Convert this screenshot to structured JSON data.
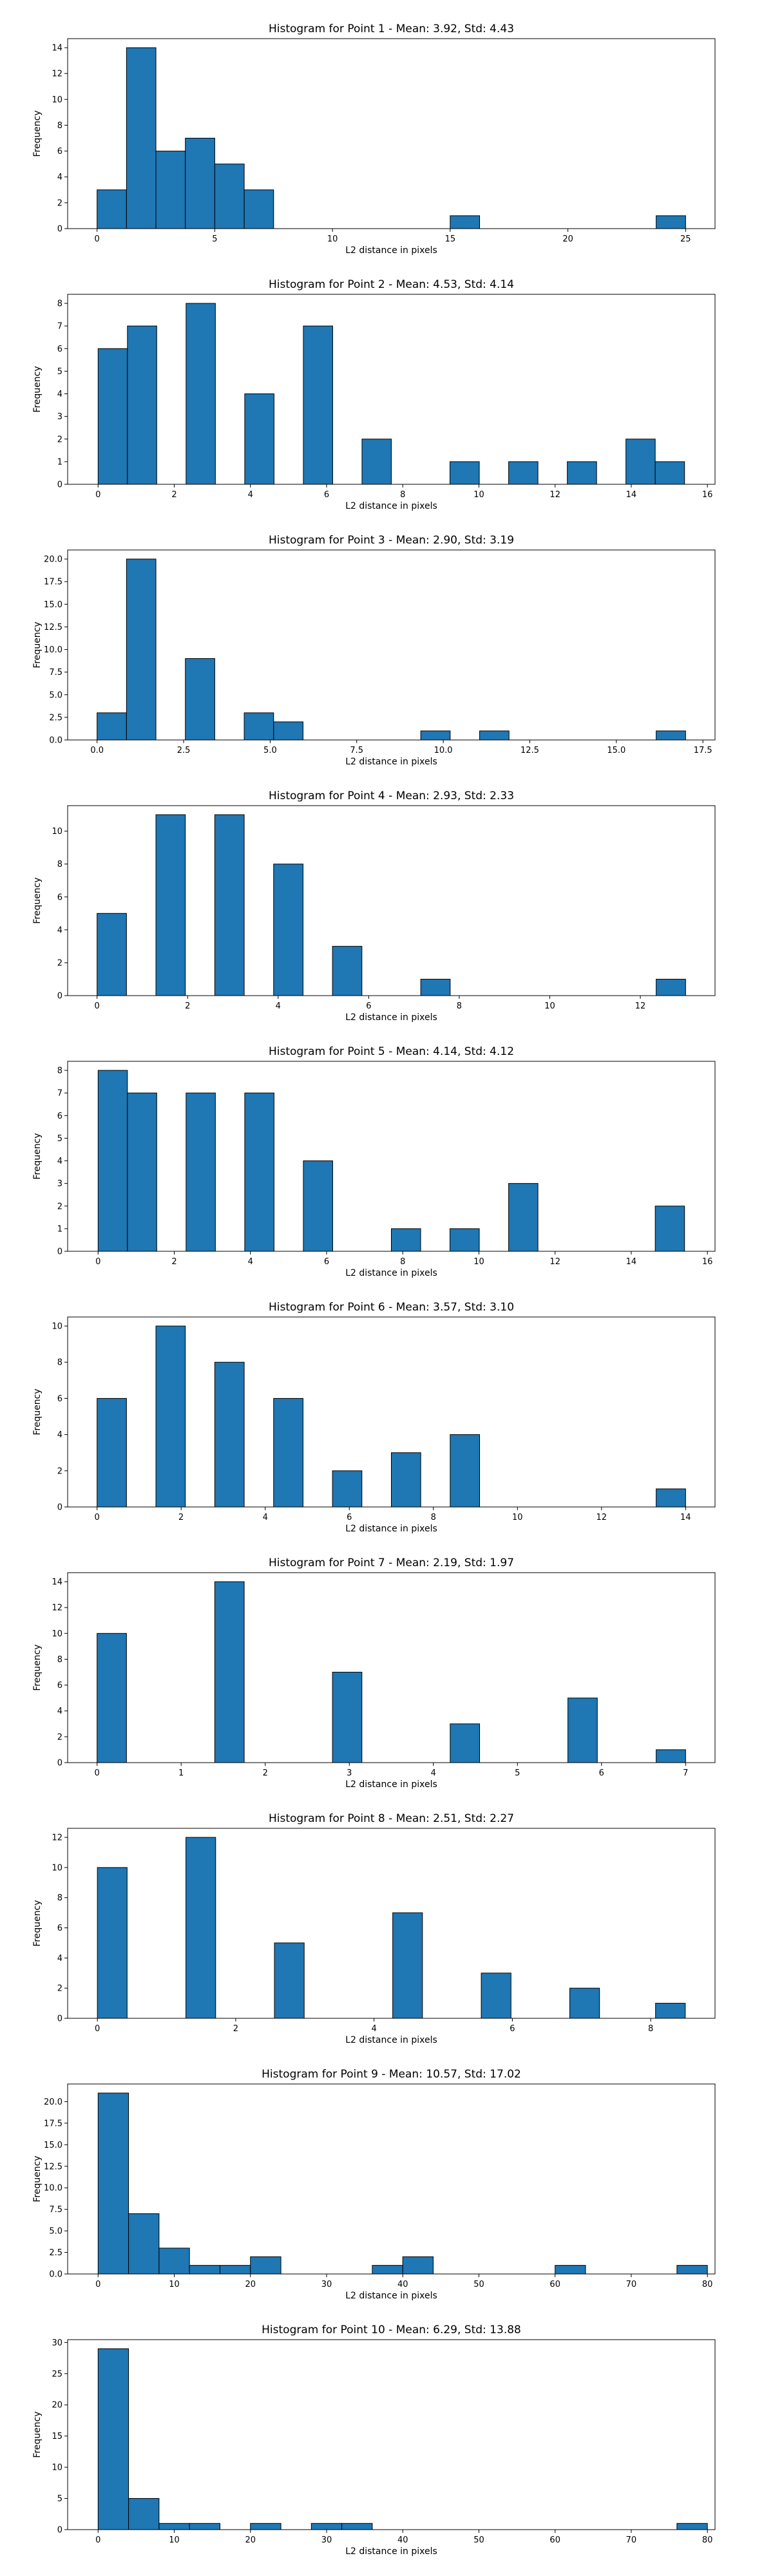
{
  "chart_data": [
    {
      "type": "bar",
      "title": "Histogram for Point 1 - Mean: 3.92, Std: 4.43",
      "xlabel": "L2 distance in pixels",
      "ylabel": "Frequency",
      "xlim": [
        -1.25,
        26.25
      ],
      "ylim": [
        0,
        14.7
      ],
      "xticks": [
        0,
        5,
        10,
        15,
        20,
        25
      ],
      "xtick_labels": [
        "0",
        "5",
        "10",
        "15",
        "20",
        "25"
      ],
      "yticks": [
        0,
        2,
        4,
        6,
        8,
        10,
        12,
        14
      ],
      "ytick_labels": [
        "0",
        "2",
        "4",
        "6",
        "8",
        "10",
        "12",
        "14"
      ],
      "bin_width": 1.25,
      "bins": [
        {
          "x0": 0.0,
          "x1": 1.25,
          "count": 3
        },
        {
          "x0": 1.25,
          "x1": 2.5,
          "count": 14
        },
        {
          "x0": 2.5,
          "x1": 3.75,
          "count": 6
        },
        {
          "x0": 3.75,
          "x1": 5.0,
          "count": 7
        },
        {
          "x0": 5.0,
          "x1": 6.25,
          "count": 5
        },
        {
          "x0": 6.25,
          "x1": 7.5,
          "count": 3
        },
        {
          "x0": 15.0,
          "x1": 16.25,
          "count": 1
        },
        {
          "x0": 23.75,
          "x1": 25.0,
          "count": 1
        }
      ],
      "grid": false
    },
    {
      "type": "bar",
      "title": "Histogram for Point 2 - Mean: 4.53, Std: 4.14",
      "xlabel": "L2 distance in pixels",
      "ylabel": "Frequency",
      "xlim": [
        -0.8,
        16.2
      ],
      "ylim": [
        0,
        8.4
      ],
      "xticks": [
        0,
        2,
        4,
        6,
        8,
        10,
        12,
        14,
        16
      ],
      "xtick_labels": [
        "0",
        "2",
        "4",
        "6",
        "8",
        "10",
        "12",
        "14",
        "16"
      ],
      "yticks": [
        0,
        1,
        2,
        3,
        4,
        5,
        6,
        7,
        8
      ],
      "ytick_labels": [
        "0",
        "1",
        "2",
        "3",
        "4",
        "5",
        "6",
        "7",
        "8"
      ],
      "bin_width": 0.77,
      "bins": [
        {
          "x0": 0.0,
          "x1": 0.77,
          "count": 6
        },
        {
          "x0": 0.77,
          "x1": 1.54,
          "count": 7
        },
        {
          "x0": 2.31,
          "x1": 3.08,
          "count": 8
        },
        {
          "x0": 3.85,
          "x1": 4.62,
          "count": 4
        },
        {
          "x0": 5.39,
          "x1": 6.16,
          "count": 7
        },
        {
          "x0": 6.93,
          "x1": 7.7,
          "count": 2
        },
        {
          "x0": 9.24,
          "x1": 10.01,
          "count": 1
        },
        {
          "x0": 10.78,
          "x1": 11.55,
          "count": 1
        },
        {
          "x0": 12.32,
          "x1": 13.09,
          "count": 1
        },
        {
          "x0": 13.86,
          "x1": 14.63,
          "count": 2
        },
        {
          "x0": 14.63,
          "x1": 15.4,
          "count": 1
        }
      ],
      "grid": false
    },
    {
      "type": "bar",
      "title": "Histogram for Point 3 - Mean: 2.90, Std: 3.19",
      "xlabel": "L2 distance in pixels",
      "ylabel": "Frequency",
      "xlim": [
        -0.85,
        17.85
      ],
      "ylim": [
        0,
        21
      ],
      "xticks": [
        0,
        2.5,
        5,
        7.5,
        10,
        12.5,
        15,
        17.5
      ],
      "xtick_labels": [
        "0.0",
        "2.5",
        "5.0",
        "7.5",
        "10.0",
        "12.5",
        "15.0",
        "17.5"
      ],
      "yticks": [
        0,
        2.5,
        5,
        7.5,
        10,
        12.5,
        15,
        17.5,
        20
      ],
      "ytick_labels": [
        "0.0",
        "2.5",
        "5.0",
        "7.5",
        "10.0",
        "12.5",
        "15.0",
        "17.5",
        "20.0"
      ],
      "bin_width": 0.85,
      "bins": [
        {
          "x0": 0.0,
          "x1": 0.85,
          "count": 3
        },
        {
          "x0": 0.85,
          "x1": 1.7,
          "count": 20
        },
        {
          "x0": 2.55,
          "x1": 3.4,
          "count": 9
        },
        {
          "x0": 4.25,
          "x1": 5.1,
          "count": 3
        },
        {
          "x0": 5.1,
          "x1": 5.95,
          "count": 2
        },
        {
          "x0": 9.35,
          "x1": 10.2,
          "count": 1
        },
        {
          "x0": 11.05,
          "x1": 11.9,
          "count": 1
        },
        {
          "x0": 16.15,
          "x1": 17.0,
          "count": 1
        }
      ],
      "grid": false
    },
    {
      "type": "bar",
      "title": "Histogram for Point 4 - Mean: 2.93, Std: 2.33",
      "xlabel": "L2 distance in pixels",
      "ylabel": "Frequency",
      "xlim": [
        -0.65,
        13.65
      ],
      "ylim": [
        0,
        11.55
      ],
      "xticks": [
        0,
        2,
        4,
        6,
        8,
        10,
        12
      ],
      "xtick_labels": [
        "0",
        "2",
        "4",
        "6",
        "8",
        "10",
        "12"
      ],
      "yticks": [
        0,
        2,
        4,
        6,
        8,
        10
      ],
      "ytick_labels": [
        "0",
        "2",
        "4",
        "6",
        "8",
        "10"
      ],
      "bin_width": 0.65,
      "bins": [
        {
          "x0": 0.0,
          "x1": 0.65,
          "count": 5
        },
        {
          "x0": 1.3,
          "x1": 1.95,
          "count": 11
        },
        {
          "x0": 2.6,
          "x1": 3.25,
          "count": 11
        },
        {
          "x0": 3.9,
          "x1": 4.55,
          "count": 8
        },
        {
          "x0": 5.2,
          "x1": 5.85,
          "count": 3
        },
        {
          "x0": 7.15,
          "x1": 7.8,
          "count": 1
        },
        {
          "x0": 12.35,
          "x1": 13.0,
          "count": 1
        }
      ],
      "grid": false
    },
    {
      "type": "bar",
      "title": "Histogram for Point 5 - Mean: 4.14, Std: 4.12",
      "xlabel": "L2 distance in pixels",
      "ylabel": "Frequency",
      "xlim": [
        -0.8,
        16.2
      ],
      "ylim": [
        0,
        8.4
      ],
      "xticks": [
        0,
        2,
        4,
        6,
        8,
        10,
        12,
        14,
        16
      ],
      "xtick_labels": [
        "0",
        "2",
        "4",
        "6",
        "8",
        "10",
        "12",
        "14",
        "16"
      ],
      "yticks": [
        0,
        1,
        2,
        3,
        4,
        5,
        6,
        7,
        8
      ],
      "ytick_labels": [
        "0",
        "1",
        "2",
        "3",
        "4",
        "5",
        "6",
        "7",
        "8"
      ],
      "bin_width": 0.77,
      "bins": [
        {
          "x0": 0.0,
          "x1": 0.77,
          "count": 8
        },
        {
          "x0": 0.77,
          "x1": 1.54,
          "count": 7
        },
        {
          "x0": 2.31,
          "x1": 3.08,
          "count": 7
        },
        {
          "x0": 3.85,
          "x1": 4.62,
          "count": 7
        },
        {
          "x0": 5.39,
          "x1": 6.16,
          "count": 4
        },
        {
          "x0": 7.7,
          "x1": 8.47,
          "count": 1
        },
        {
          "x0": 9.24,
          "x1": 10.01,
          "count": 1
        },
        {
          "x0": 10.78,
          "x1": 11.55,
          "count": 3
        },
        {
          "x0": 14.63,
          "x1": 15.4,
          "count": 2
        }
      ],
      "grid": false
    },
    {
      "type": "bar",
      "title": "Histogram for Point 6 - Mean: 3.57, Std: 3.10",
      "xlabel": "L2 distance in pixels",
      "ylabel": "Frequency",
      "xlim": [
        -0.7,
        14.7
      ],
      "ylim": [
        0,
        10.5
      ],
      "xticks": [
        0,
        2,
        4,
        6,
        8,
        10,
        12,
        14
      ],
      "xtick_labels": [
        "0",
        "2",
        "4",
        "6",
        "8",
        "10",
        "12",
        "14"
      ],
      "yticks": [
        0,
        2,
        4,
        6,
        8,
        10
      ],
      "ytick_labels": [
        "0",
        "2",
        "4",
        "6",
        "8",
        "10"
      ],
      "bin_width": 0.7,
      "bins": [
        {
          "x0": 0.0,
          "x1": 0.7,
          "count": 6
        },
        {
          "x0": 1.4,
          "x1": 2.1,
          "count": 10
        },
        {
          "x0": 2.8,
          "x1": 3.5,
          "count": 8
        },
        {
          "x0": 4.2,
          "x1": 4.9,
          "count": 6
        },
        {
          "x0": 5.6,
          "x1": 6.3,
          "count": 2
        },
        {
          "x0": 7.0,
          "x1": 7.7,
          "count": 3
        },
        {
          "x0": 8.4,
          "x1": 9.1,
          "count": 4
        },
        {
          "x0": 13.3,
          "x1": 14.0,
          "count": 1
        }
      ],
      "grid": false
    },
    {
      "type": "bar",
      "title": "Histogram for Point 7 - Mean: 2.19, Std: 1.97",
      "xlabel": "L2 distance in pixels",
      "ylabel": "Frequency",
      "xlim": [
        -0.35,
        7.35
      ],
      "ylim": [
        0,
        14.7
      ],
      "xticks": [
        0,
        1,
        2,
        3,
        4,
        5,
        6,
        7
      ],
      "xtick_labels": [
        "0",
        "1",
        "2",
        "3",
        "4",
        "5",
        "6",
        "7"
      ],
      "yticks": [
        0,
        2,
        4,
        6,
        8,
        10,
        12,
        14
      ],
      "ytick_labels": [
        "0",
        "2",
        "4",
        "6",
        "8",
        "10",
        "12",
        "14"
      ],
      "bin_width": 0.35,
      "bins": [
        {
          "x0": 0.0,
          "x1": 0.35,
          "count": 10
        },
        {
          "x0": 1.4,
          "x1": 1.75,
          "count": 14
        },
        {
          "x0": 2.8,
          "x1": 3.15,
          "count": 7
        },
        {
          "x0": 4.2,
          "x1": 4.55,
          "count": 3
        },
        {
          "x0": 5.6,
          "x1": 5.95,
          "count": 5
        },
        {
          "x0": 6.65,
          "x1": 7.0,
          "count": 1
        }
      ],
      "grid": false
    },
    {
      "type": "bar",
      "title": "Histogram for Point 8 - Mean: 2.51, Std: 2.27",
      "xlabel": "L2 distance in pixels",
      "ylabel": "Frequency",
      "xlim": [
        -0.43,
        8.93
      ],
      "ylim": [
        0,
        12.6
      ],
      "xticks": [
        0,
        2,
        4,
        6,
        8
      ],
      "xtick_labels": [
        "0",
        "2",
        "4",
        "6",
        "8"
      ],
      "yticks": [
        0,
        2,
        4,
        6,
        8,
        10,
        12
      ],
      "ytick_labels": [
        "0",
        "2",
        "4",
        "6",
        "8",
        "10",
        "12"
      ],
      "bin_width": 0.43,
      "bins": [
        {
          "x0": 0.0,
          "x1": 0.43,
          "count": 10
        },
        {
          "x0": 1.28,
          "x1": 1.71,
          "count": 12
        },
        {
          "x0": 2.56,
          "x1": 2.99,
          "count": 5
        },
        {
          "x0": 4.27,
          "x1": 4.7,
          "count": 7
        },
        {
          "x0": 5.55,
          "x1": 5.98,
          "count": 3
        },
        {
          "x0": 6.83,
          "x1": 7.26,
          "count": 2
        },
        {
          "x0": 8.07,
          "x1": 8.5,
          "count": 1
        }
      ],
      "grid": false
    },
    {
      "type": "bar",
      "title": "Histogram for Point 9 - Mean: 10.57, Std: 17.02",
      "xlabel": "L2 distance in pixels",
      "ylabel": "Frequency",
      "xlim": [
        -4.0,
        81.0
      ],
      "ylim": [
        0,
        22.05
      ],
      "xticks": [
        0,
        10,
        20,
        30,
        40,
        50,
        60,
        70,
        80
      ],
      "xtick_labels": [
        "0",
        "10",
        "20",
        "30",
        "40",
        "50",
        "60",
        "70",
        "80"
      ],
      "yticks": [
        0,
        2.5,
        5,
        7.5,
        10,
        12.5,
        15,
        17.5,
        20
      ],
      "ytick_labels": [
        "0.0",
        "2.5",
        "5.0",
        "7.5",
        "10.0",
        "12.5",
        "15.0",
        "17.5",
        "20.0"
      ],
      "bin_width": 4.0,
      "bins": [
        {
          "x0": 0.0,
          "x1": 4.0,
          "count": 21
        },
        {
          "x0": 4.0,
          "x1": 8.0,
          "count": 7
        },
        {
          "x0": 8.0,
          "x1": 12.0,
          "count": 3
        },
        {
          "x0": 12.0,
          "x1": 16.0,
          "count": 1
        },
        {
          "x0": 16.0,
          "x1": 20.0,
          "count": 1
        },
        {
          "x0": 20.0,
          "x1": 24.0,
          "count": 2
        },
        {
          "x0": 36.0,
          "x1": 40.0,
          "count": 1
        },
        {
          "x0": 40.0,
          "x1": 44.0,
          "count": 2
        },
        {
          "x0": 60.0,
          "x1": 64.0,
          "count": 1
        },
        {
          "x0": 76.0,
          "x1": 80.0,
          "count": 1
        }
      ],
      "grid": false
    },
    {
      "type": "bar",
      "title": "Histogram for Point 10 - Mean: 6.29, Std: 13.88",
      "xlabel": "L2 distance in pixels",
      "ylabel": "Frequency",
      "xlim": [
        -4.0,
        81.0
      ],
      "ylim": [
        0,
        30.45
      ],
      "xticks": [
        0,
        10,
        20,
        30,
        40,
        50,
        60,
        70,
        80
      ],
      "xtick_labels": [
        "0",
        "10",
        "20",
        "30",
        "40",
        "50",
        "60",
        "70",
        "80"
      ],
      "yticks": [
        0,
        5,
        10,
        15,
        20,
        25,
        30
      ],
      "ytick_labels": [
        "0",
        "5",
        "10",
        "15",
        "20",
        "25",
        "30"
      ],
      "bin_width": 4.0,
      "bins": [
        {
          "x0": 0.0,
          "x1": 4.0,
          "count": 29
        },
        {
          "x0": 4.0,
          "x1": 8.0,
          "count": 5
        },
        {
          "x0": 8.0,
          "x1": 12.0,
          "count": 1
        },
        {
          "x0": 12.0,
          "x1": 16.0,
          "count": 1
        },
        {
          "x0": 20.0,
          "x1": 24.0,
          "count": 1
        },
        {
          "x0": 28.0,
          "x1": 32.0,
          "count": 1
        },
        {
          "x0": 32.0,
          "x1": 36.0,
          "count": 1
        },
        {
          "x0": 76.0,
          "x1": 80.0,
          "count": 1
        }
      ],
      "grid": false
    }
  ],
  "colors": {
    "bar_fill": "#1f77b4",
    "bar_edge": "#000000",
    "background": "#ffffff"
  }
}
